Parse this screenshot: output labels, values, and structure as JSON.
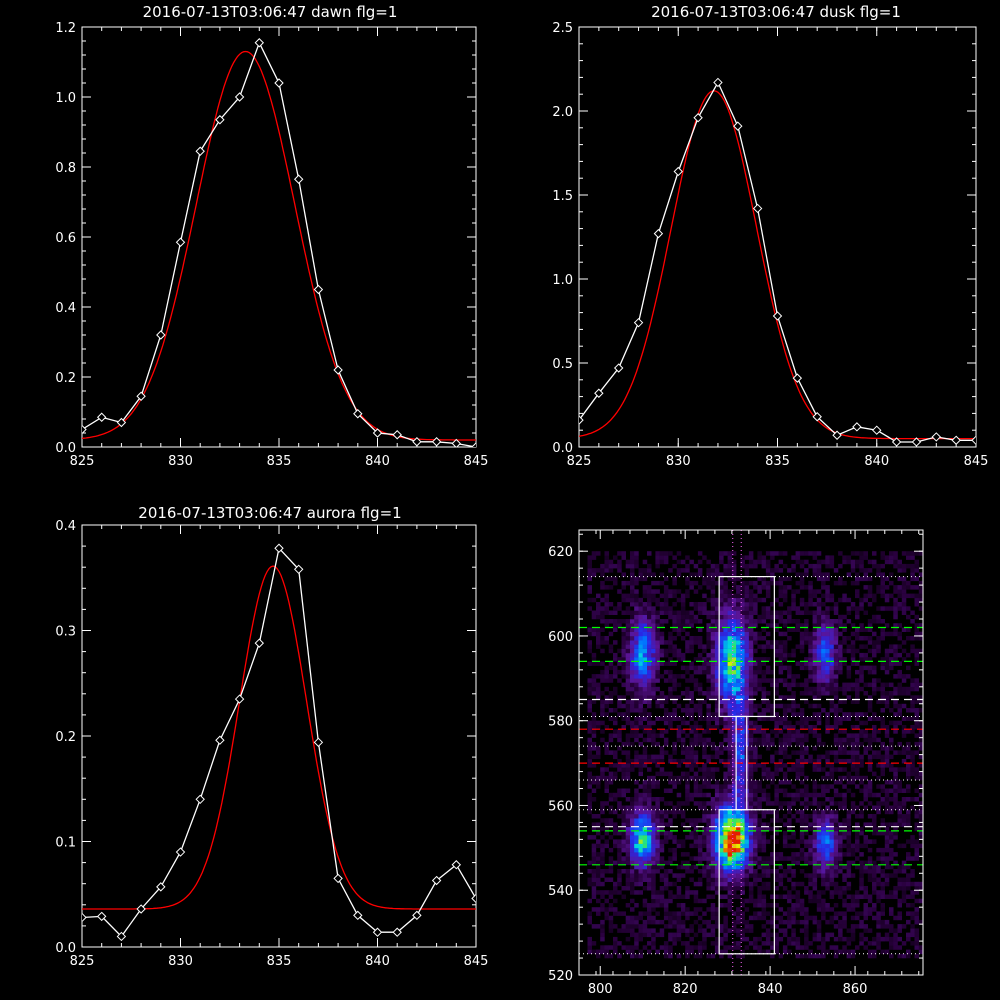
{
  "chart_data": [
    {
      "type": "line",
      "title": "2016-07-13T03:06:47 dawn flg=1",
      "xlim": [
        825,
        845
      ],
      "ylim": [
        0,
        1.2
      ],
      "xticks": [
        825,
        830,
        835,
        840,
        845
      ],
      "yticks": [
        0,
        0.2,
        0.4,
        0.6,
        0.8,
        1.0,
        1.2
      ],
      "ytick_labels": [
        "0.0",
        "0.2",
        "0.4",
        "0.6",
        "0.8",
        "1.0",
        "1.2"
      ],
      "series": [
        {
          "kind": "observed",
          "color": "#ffffff",
          "marker": "diamond",
          "x": [
            825,
            826,
            827,
            828,
            829,
            830,
            831,
            832,
            833,
            834,
            835,
            836,
            837,
            838,
            839,
            840,
            841,
            842,
            843,
            844,
            845
          ],
          "y": [
            0.05,
            0.085,
            0.07,
            0.145,
            0.32,
            0.585,
            0.845,
            0.935,
            1.0,
            1.155,
            1.04,
            0.765,
            0.45,
            0.22,
            0.095,
            0.04,
            0.035,
            0.015,
            0.015,
            0.01,
            0.0
          ]
        },
        {
          "kind": "fit",
          "color": "#ff0000",
          "gaussian": {
            "amp": 1.11,
            "center": 833.3,
            "sigma": 2.5,
            "offset": 0.02
          }
        }
      ]
    },
    {
      "type": "line",
      "title": "2016-07-13T03:06:47 dusk flg=1",
      "xlim": [
        825,
        845
      ],
      "ylim": [
        0,
        2.5
      ],
      "xticks": [
        825,
        830,
        835,
        840,
        845
      ],
      "yticks": [
        0,
        0.5,
        1.0,
        1.5,
        2.0,
        2.5
      ],
      "ytick_labels": [
        "0.0",
        "0.5",
        "1.0",
        "1.5",
        "2.0",
        "2.5"
      ],
      "series": [
        {
          "kind": "observed",
          "color": "#ffffff",
          "marker": "diamond",
          "x": [
            825,
            826,
            827,
            828,
            829,
            830,
            831,
            832,
            833,
            834,
            835,
            836,
            837,
            838,
            839,
            840,
            841,
            842,
            843,
            844,
            845
          ],
          "y": [
            0.16,
            0.32,
            0.47,
            0.74,
            1.27,
            1.64,
            1.96,
            2.17,
            1.91,
            1.42,
            0.78,
            0.41,
            0.18,
            0.07,
            0.12,
            0.1,
            0.03,
            0.03,
            0.06,
            0.04,
            0.04
          ]
        },
        {
          "kind": "fit",
          "color": "#ff0000",
          "gaussian": {
            "amp": 2.07,
            "center": 831.8,
            "sigma": 2.15,
            "offset": 0.05
          }
        }
      ]
    },
    {
      "type": "line",
      "title": "2016-07-13T03:06:47 aurora flg=1",
      "xlim": [
        825,
        845
      ],
      "ylim": [
        0,
        0.4
      ],
      "xticks": [
        825,
        830,
        835,
        840,
        845
      ],
      "yticks": [
        0,
        0.1,
        0.2,
        0.3,
        0.4
      ],
      "ytick_labels": [
        "0.0",
        "0.1",
        "0.2",
        "0.3",
        "0.4"
      ],
      "series": [
        {
          "kind": "observed",
          "color": "#ffffff",
          "marker": "diamond",
          "x": [
            825,
            826,
            827,
            828,
            829,
            830,
            831,
            832,
            833,
            834,
            835,
            836,
            837,
            838,
            839,
            840,
            841,
            842,
            843,
            844,
            845
          ],
          "y": [
            0.028,
            0.029,
            0.01,
            0.036,
            0.057,
            0.09,
            0.14,
            0.196,
            0.235,
            0.288,
            0.378,
            0.358,
            0.194,
            0.065,
            0.03,
            0.014,
            0.014,
            0.03,
            0.063,
            0.078,
            0.046
          ]
        },
        {
          "kind": "fit",
          "color": "#ff0000",
          "gaussian": {
            "amp": 0.325,
            "center": 834.7,
            "sigma": 1.7,
            "offset": 0.036
          }
        }
      ]
    },
    {
      "type": "heatmap",
      "title": "",
      "xlim": [
        795,
        876
      ],
      "ylim": [
        520,
        625
      ],
      "xticks": [
        800,
        820,
        840,
        860
      ],
      "yticks": [
        520,
        540,
        560,
        580,
        600,
        620
      ],
      "blobs": [
        {
          "cx": 810,
          "cy": 596,
          "sx": 2.0,
          "sy": 5.5,
          "amp": 0.45
        },
        {
          "cx": 831,
          "cy": 594,
          "sx": 2.4,
          "sy": 7.0,
          "amp": 0.65
        },
        {
          "cx": 853,
          "cy": 596,
          "sx": 1.8,
          "sy": 4.5,
          "amp": 0.35
        },
        {
          "cx": 810,
          "cy": 552,
          "sx": 2.0,
          "sy": 4.0,
          "amp": 0.6
        },
        {
          "cx": 831,
          "cy": 552,
          "sx": 2.6,
          "sy": 5.0,
          "amp": 1.0
        },
        {
          "cx": 853,
          "cy": 551,
          "sx": 1.8,
          "sy": 4.0,
          "amp": 0.4
        },
        {
          "cx": 833,
          "cy": 572,
          "sx": 1.2,
          "sy": 9.0,
          "amp": 0.35
        }
      ],
      "boxes": [
        {
          "x0": 828,
          "x1": 841,
          "y0": 581,
          "y1": 614
        },
        {
          "x0": 828,
          "x1": 841,
          "y0": 525,
          "y1": 559
        },
        {
          "x0": 832,
          "x1": 834.5,
          "y0": 559,
          "y1": 581
        }
      ],
      "dashed_lines": [
        {
          "y": 602,
          "color": "#00ff00"
        },
        {
          "y": 594,
          "color": "#00ff00"
        },
        {
          "y": 585,
          "color": "#ffffff"
        },
        {
          "y": 578,
          "color": "#ff0000"
        },
        {
          "y": 570,
          "color": "#ff0000"
        },
        {
          "y": 555,
          "color": "#ffffff"
        },
        {
          "y": 554,
          "color": "#00ff00"
        },
        {
          "y": 546,
          "color": "#00ff00"
        }
      ],
      "dotted_hlines": [
        614,
        581,
        574,
        566,
        559,
        525
      ],
      "dotted_vlines": [
        831.2,
        833.2
      ],
      "dotted_color": "#ff66ff"
    }
  ]
}
